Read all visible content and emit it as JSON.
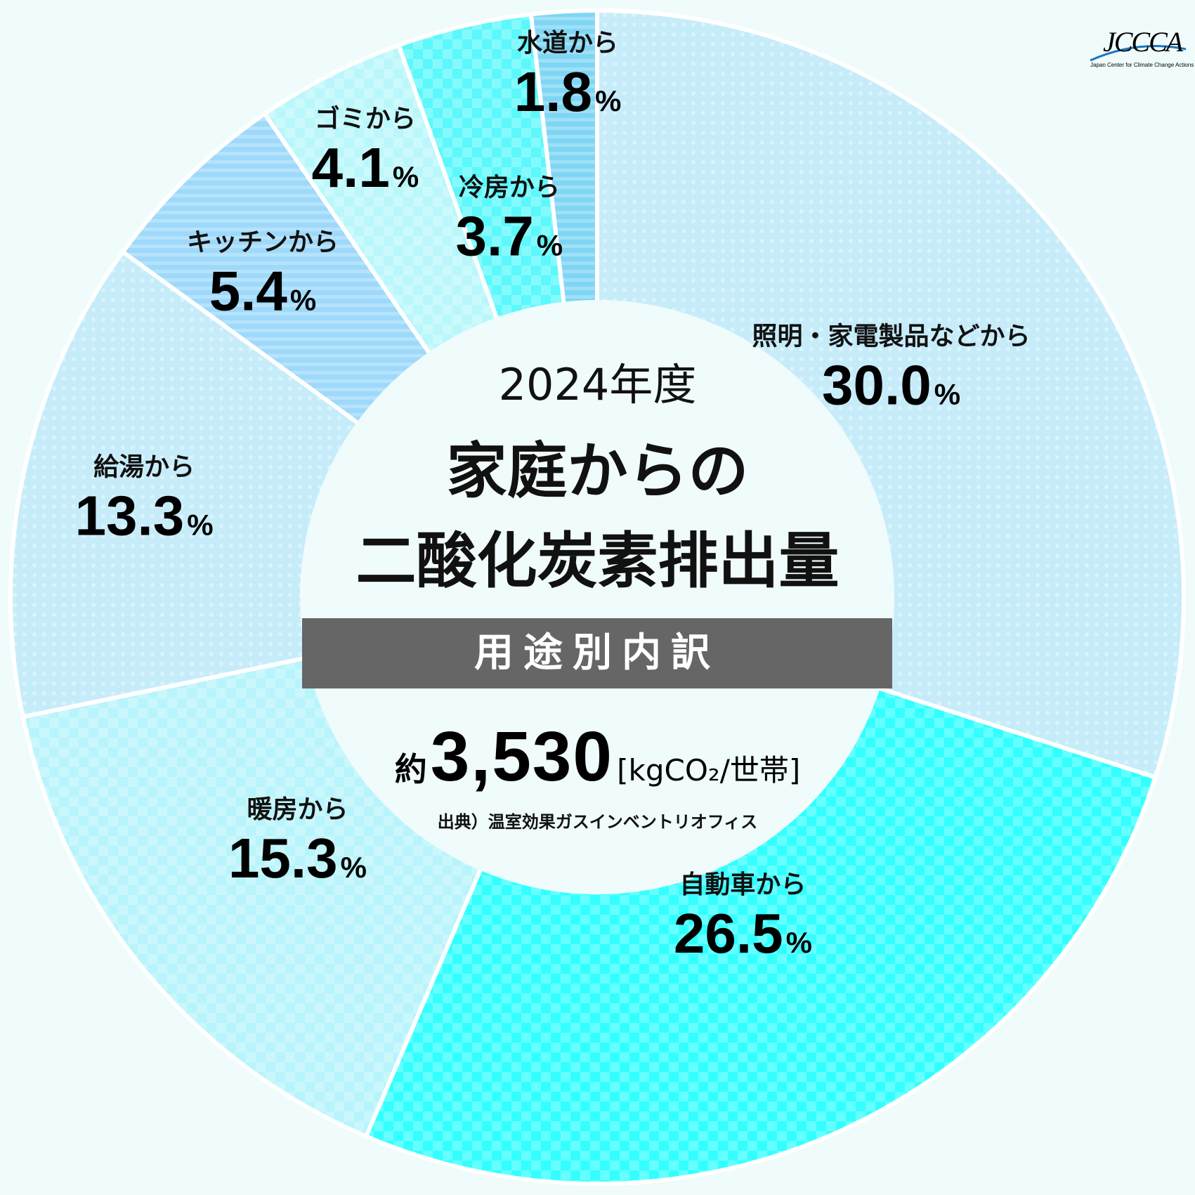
{
  "chart_data": {
    "type": "pie",
    "title": "家庭からの 二酸化炭素排出量",
    "slices": [
      {
        "label": "照明・家電製品などから",
        "value": 30.0,
        "color": "#c6ecfa"
      },
      {
        "label": "自動車から",
        "value": 26.5,
        "color": "#33ffff"
      },
      {
        "label": "暖房から",
        "value": 15.3,
        "color": "#b8f4fb"
      },
      {
        "label": "給湯から",
        "value": 13.3,
        "color": "#c6ecfa"
      },
      {
        "label": "キッチンから",
        "value": 5.4,
        "color": "#9ed9fb"
      },
      {
        "label": "ゴミから",
        "value": 4.1,
        "color": "#baf7fb"
      },
      {
        "label": "冷房から",
        "value": 3.7,
        "color": "#5cf8fb"
      },
      {
        "label": "水道から",
        "value": 1.8,
        "color": "#7fd6f4"
      }
    ],
    "value_suffix": "%"
  },
  "header": {
    "year": "2024年度",
    "title_line1": "家庭からの",
    "title_line2": "二酸化炭素排出量",
    "band_label": "用途別内訳"
  },
  "total": {
    "prefix": "約",
    "value": "3,530",
    "unit": "[kgCO₂/世帯]"
  },
  "source": "出典）温室効果ガスインベントリオフィス",
  "logo": {
    "text": "JCCCA",
    "subtitle": "Japan Center for Climate Change Actions"
  }
}
